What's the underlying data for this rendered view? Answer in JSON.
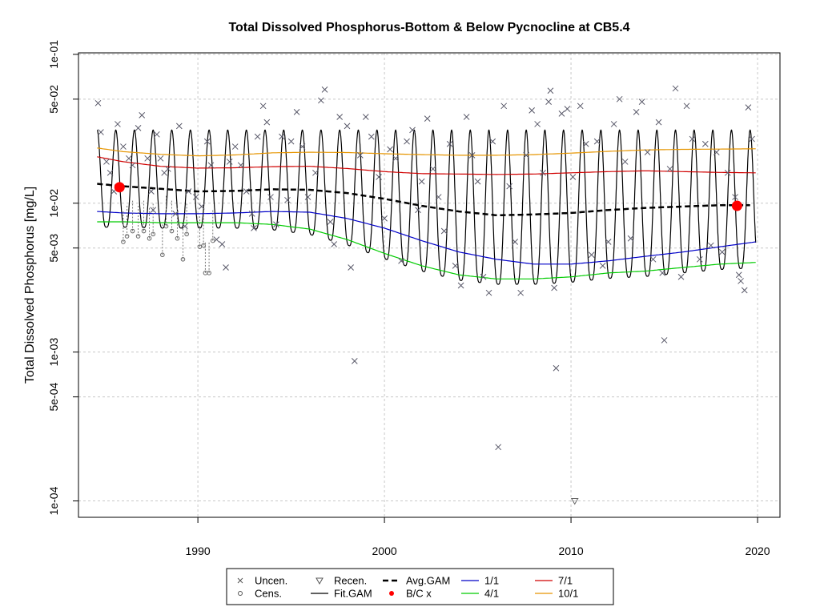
{
  "chart_data": {
    "type": "scatter",
    "title": "Total Dissolved Phosphorus-Bottom & Below Pycnocline at CB5.4",
    "ylabel": "Total Dissolved Phosphorus [mg/L]",
    "xlabel": "",
    "y_scale": "log10",
    "xlim": [
      1983.6,
      2021.2
    ],
    "ylim_log10": [
      -4.11,
      -0.99
    ],
    "x_ticks": [
      1990,
      2000,
      2010,
      2020
    ],
    "y_ticks": [
      {
        "value": 0.1,
        "label": "1e-01"
      },
      {
        "value": 0.05,
        "label": "5e-02"
      },
      {
        "value": 0.01,
        "label": "1e-02"
      },
      {
        "value": 0.005,
        "label": "5e-03"
      },
      {
        "value": 0.001,
        "label": "1e-03"
      },
      {
        "value": 0.0005,
        "label": "5e-04"
      },
      {
        "value": 0.0001,
        "label": "1e-04"
      }
    ],
    "grid": true,
    "legend": {
      "placement": "bottom",
      "entries": [
        {
          "label": "Uncen.",
          "symbol": "x",
          "color": "#555555"
        },
        {
          "label": "Recen.",
          "symbol": "triangle-down",
          "color": "#555555"
        },
        {
          "label": "Avg.GAM",
          "symbol": "dash-line",
          "color": "#000000"
        },
        {
          "label": "1/1",
          "symbol": "line",
          "color": "#0000c8"
        },
        {
          "label": "7/1",
          "symbol": "line",
          "color": "#d00000"
        },
        {
          "label": "Cens.",
          "symbol": "circle",
          "color": "#555555"
        },
        {
          "label": "Fit.GAM",
          "symbol": "line",
          "color": "#000000"
        },
        {
          "label": "B/C x",
          "symbol": "dot",
          "color": "#ff0000"
        },
        {
          "label": "4/1",
          "symbol": "line",
          "color": "#00cc00"
        },
        {
          "label": "10/1",
          "symbol": "line",
          "color": "#e69500"
        }
      ]
    },
    "series": [
      {
        "name": "Avg.GAM",
        "color": "#000000",
        "style": "dashed",
        "x": [
          1984.6,
          1986,
          1988,
          1990,
          1992,
          1994,
          1996,
          1998,
          2000,
          2002,
          2004,
          2006,
          2008,
          2010,
          2012,
          2014,
          2016,
          2018,
          2019.6
        ],
        "y": [
          0.0135,
          0.013,
          0.0125,
          0.012,
          0.0121,
          0.0124,
          0.0123,
          0.0117,
          0.0107,
          0.0096,
          0.0088,
          0.0083,
          0.0084,
          0.0086,
          0.009,
          0.0093,
          0.0095,
          0.0097,
          0.0097
        ]
      },
      {
        "name": "1/1",
        "color": "#0000c8",
        "style": "solid",
        "x": [
          1984.6,
          1986,
          1988,
          1990,
          1992,
          1994,
          1996,
          1998,
          2000,
          2002,
          2004,
          2006,
          2008,
          2010,
          2012,
          2014,
          2016,
          2018,
          2019.9
        ],
        "y": [
          0.0088,
          0.0086,
          0.0085,
          0.0085,
          0.0086,
          0.0088,
          0.0087,
          0.0079,
          0.0068,
          0.0056,
          0.0047,
          0.0042,
          0.0039,
          0.0039,
          0.0041,
          0.0044,
          0.0047,
          0.0051,
          0.0055
        ]
      },
      {
        "name": "4/1",
        "color": "#00cc00",
        "style": "solid",
        "x": [
          1984.6,
          1986,
          1988,
          1990,
          1992,
          1994,
          1996,
          1998,
          2000,
          2002,
          2004,
          2006,
          2008,
          2010,
          2012,
          2014,
          2016,
          2018,
          2019.9
        ],
        "y": [
          0.0075,
          0.0075,
          0.0074,
          0.0074,
          0.0074,
          0.0072,
          0.0067,
          0.0057,
          0.0046,
          0.0038,
          0.0033,
          0.0031,
          0.0031,
          0.0032,
          0.0034,
          0.0035,
          0.0037,
          0.0039,
          0.004
        ]
      },
      {
        "name": "7/1",
        "color": "#d00000",
        "style": "solid",
        "x": [
          1984.6,
          1986,
          1988,
          1990,
          1992,
          1994,
          1996,
          1998,
          2000,
          2002,
          2004,
          2006,
          2008,
          2010,
          2012,
          2014,
          2016,
          2018,
          2019.9
        ],
        "y": [
          0.0205,
          0.019,
          0.0177,
          0.0172,
          0.0173,
          0.0176,
          0.0177,
          0.0171,
          0.0163,
          0.0158,
          0.0157,
          0.0156,
          0.0157,
          0.016,
          0.0163,
          0.0165,
          0.0163,
          0.0161,
          0.016
        ]
      },
      {
        "name": "10/1",
        "color": "#e69500",
        "style": "solid",
        "x": [
          1984.6,
          1986,
          1988,
          1990,
          1992,
          1994,
          1996,
          1998,
          2000,
          2002,
          2004,
          2006,
          2008,
          2010,
          2012,
          2014,
          2016,
          2018,
          2019.9
        ],
        "y": [
          0.0235,
          0.0222,
          0.0213,
          0.0208,
          0.0211,
          0.0218,
          0.022,
          0.0219,
          0.0215,
          0.0212,
          0.021,
          0.021,
          0.0212,
          0.0217,
          0.0223,
          0.0228,
          0.023,
          0.0231,
          0.0232
        ]
      },
      {
        "name": "Fit.GAM",
        "color": "#000000",
        "style": "solid",
        "seasonal": true,
        "start_year": 1984.6,
        "end_year": 2019.9,
        "peak_y": 0.031,
        "trough_follows": "4/1"
      }
    ],
    "uncensored_points": [
      [
        1984.65,
        0.047
      ],
      [
        1984.8,
        0.03
      ],
      [
        1985.1,
        0.019
      ],
      [
        1985.3,
        0.016
      ],
      [
        1985.5,
        0.012
      ],
      [
        1985.7,
        0.034
      ],
      [
        1986.0,
        0.024
      ],
      [
        1986.3,
        0.02
      ],
      [
        1986.5,
        0.018
      ],
      [
        1986.8,
        0.032
      ],
      [
        1987.0,
        0.039
      ],
      [
        1987.3,
        0.02
      ],
      [
        1987.5,
        0.012
      ],
      [
        1987.6,
        0.009
      ],
      [
        1987.8,
        0.029
      ],
      [
        1988.0,
        0.02
      ],
      [
        1988.2,
        0.016
      ],
      [
        1988.4,
        0.017
      ],
      [
        1988.8,
        0.0085
      ],
      [
        1989.0,
        0.033
      ],
      [
        1989.3,
        0.007
      ],
      [
        1989.5,
        0.012
      ],
      [
        1989.9,
        0.011
      ],
      [
        1990.2,
        0.0095
      ],
      [
        1990.5,
        0.026
      ],
      [
        1990.7,
        0.018
      ],
      [
        1991.0,
        0.0057
      ],
      [
        1991.3,
        0.0053
      ],
      [
        1991.5,
        0.0037
      ],
      [
        1991.7,
        0.019
      ],
      [
        1992.0,
        0.024
      ],
      [
        1992.3,
        0.018
      ],
      [
        1992.6,
        0.012
      ],
      [
        1992.9,
        0.0085
      ],
      [
        1993.0,
        0.0068
      ],
      [
        1993.2,
        0.028
      ],
      [
        1993.5,
        0.045
      ],
      [
        1993.7,
        0.035
      ],
      [
        1993.9,
        0.011
      ],
      [
        1994.2,
        0.0072
      ],
      [
        1994.5,
        0.028
      ],
      [
        1994.8,
        0.0105
      ],
      [
        1995.0,
        0.026
      ],
      [
        1995.3,
        0.041
      ],
      [
        1995.6,
        0.024
      ],
      [
        1995.9,
        0.011
      ],
      [
        1996.3,
        0.016
      ],
      [
        1996.6,
        0.049
      ],
      [
        1996.8,
        0.058
      ],
      [
        1997.1,
        0.0075
      ],
      [
        1997.3,
        0.0053
      ],
      [
        1997.6,
        0.038
      ],
      [
        1998.0,
        0.033
      ],
      [
        1998.2,
        0.0037
      ],
      [
        1998.4,
        0.00087
      ],
      [
        1998.7,
        0.021
      ],
      [
        1999.0,
        0.038
      ],
      [
        1999.3,
        0.028
      ],
      [
        1999.7,
        0.015
      ],
      [
        2000.0,
        0.0079
      ],
      [
        2000.3,
        0.023
      ],
      [
        2000.6,
        0.02
      ],
      [
        2000.9,
        0.0041
      ],
      [
        2001.2,
        0.026
      ],
      [
        2001.5,
        0.031
      ],
      [
        2001.8,
        0.009
      ],
      [
        2002.0,
        0.014
      ],
      [
        2002.3,
        0.037
      ],
      [
        2002.6,
        0.017
      ],
      [
        2002.9,
        0.011
      ],
      [
        2003.2,
        0.0065
      ],
      [
        2003.5,
        0.025
      ],
      [
        2003.8,
        0.0038
      ],
      [
        2004.1,
        0.0028
      ],
      [
        2004.4,
        0.038
      ],
      [
        2004.7,
        0.021
      ],
      [
        2005.0,
        0.014
      ],
      [
        2005.3,
        0.0032
      ],
      [
        2005.6,
        0.0025
      ],
      [
        2005.8,
        0.026
      ],
      [
        2006.1,
        0.00023
      ],
      [
        2006.4,
        0.045
      ],
      [
        2006.7,
        0.013
      ],
      [
        2007.0,
        0.0055
      ],
      [
        2007.3,
        0.0025
      ],
      [
        2007.6,
        0.021
      ],
      [
        2007.9,
        0.042
      ],
      [
        2008.2,
        0.034
      ],
      [
        2008.5,
        0.016
      ],
      [
        2008.8,
        0.048
      ],
      [
        2008.9,
        0.057
      ],
      [
        2009.1,
        0.0027
      ],
      [
        2009.2,
        0.00078
      ],
      [
        2009.5,
        0.04
      ],
      [
        2009.8,
        0.043
      ],
      [
        2010.1,
        0.015
      ],
      [
        2010.5,
        0.045
      ],
      [
        2010.8,
        0.025
      ],
      [
        2011.1,
        0.0045
      ],
      [
        2011.4,
        0.026
      ],
      [
        2011.7,
        0.0038
      ],
      [
        2012.0,
        0.0055
      ],
      [
        2012.3,
        0.034
      ],
      [
        2012.6,
        0.05
      ],
      [
        2012.9,
        0.019
      ],
      [
        2013.2,
        0.0058
      ],
      [
        2013.5,
        0.041
      ],
      [
        2013.8,
        0.048
      ],
      [
        2014.1,
        0.022
      ],
      [
        2014.4,
        0.0042
      ],
      [
        2014.7,
        0.035
      ],
      [
        2014.9,
        0.0034
      ],
      [
        2015.0,
        0.0012
      ],
      [
        2015.3,
        0.017
      ],
      [
        2015.6,
        0.059
      ],
      [
        2015.9,
        0.0032
      ],
      [
        2016.2,
        0.045
      ],
      [
        2016.5,
        0.027
      ],
      [
        2016.9,
        0.0042
      ],
      [
        2017.2,
        0.025
      ],
      [
        2017.5,
        0.0052
      ],
      [
        2017.8,
        0.022
      ],
      [
        2018.1,
        0.0047
      ],
      [
        2018.4,
        0.016
      ],
      [
        2018.8,
        0.011
      ],
      [
        2019.0,
        0.0033
      ],
      [
        2019.1,
        0.003
      ],
      [
        2019.3,
        0.0026
      ],
      [
        2019.5,
        0.044
      ],
      [
        2019.7,
        0.027
      ]
    ],
    "censored_points": [
      [
        1986.0,
        0.0055
      ],
      [
        1986.2,
        0.006
      ],
      [
        1986.5,
        0.0065
      ],
      [
        1986.8,
        0.006
      ],
      [
        1987.1,
        0.0065
      ],
      [
        1987.4,
        0.0058
      ],
      [
        1987.6,
        0.0062
      ],
      [
        1988.1,
        0.0045
      ],
      [
        1988.3,
        0.007
      ],
      [
        1988.6,
        0.0065
      ],
      [
        1988.9,
        0.0058
      ],
      [
        1989.2,
        0.0042
      ],
      [
        1989.4,
        0.0062
      ],
      [
        1990.1,
        0.0051
      ],
      [
        1990.3,
        0.0052
      ],
      [
        1990.4,
        0.0034
      ],
      [
        1990.6,
        0.0034
      ],
      [
        1990.8,
        0.0056
      ]
    ],
    "recensored_points": [
      [
        2010.2,
        0.0001
      ]
    ],
    "bc_points": [
      [
        1985.8,
        0.0128
      ],
      [
        2018.9,
        0.0096
      ]
    ]
  }
}
